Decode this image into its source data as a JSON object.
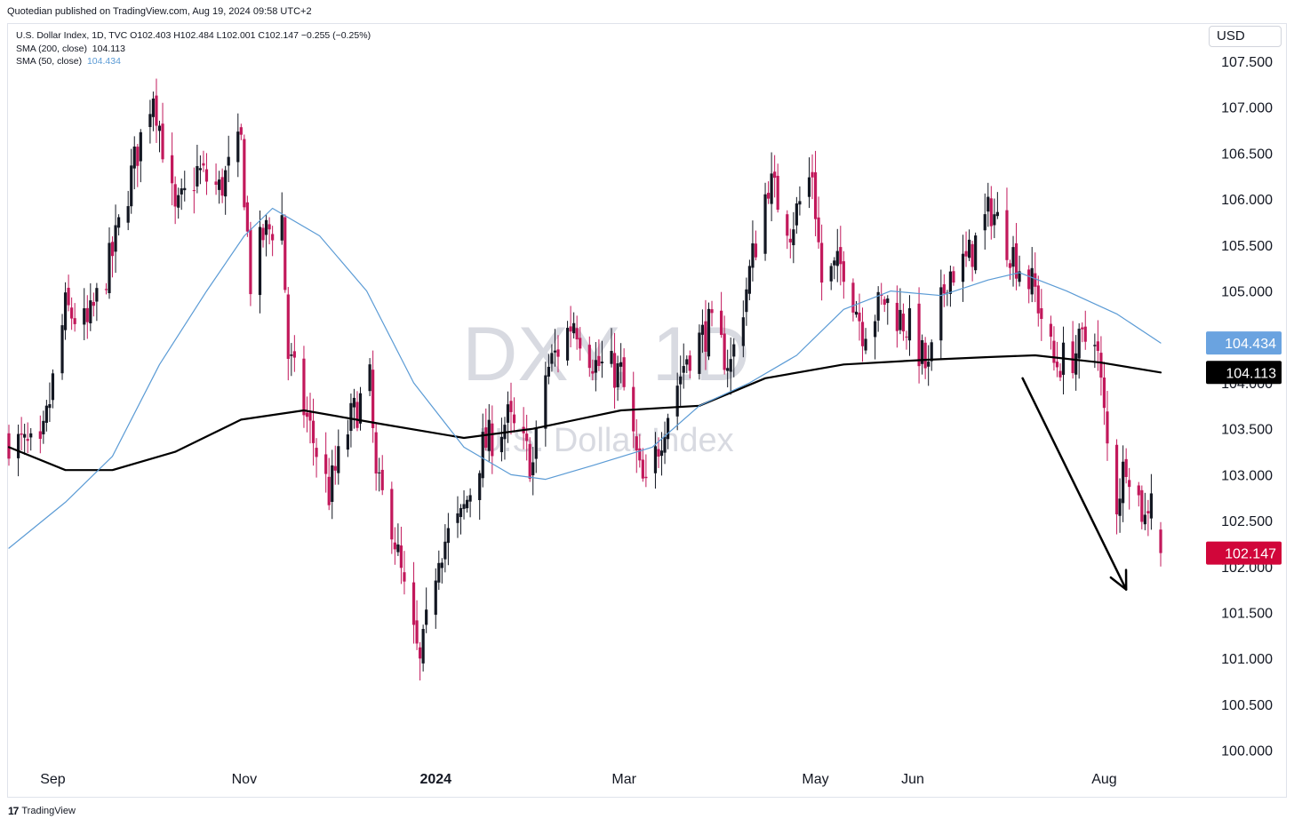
{
  "publisher_line": "Quotedian published on TradingView.com, Aug 19, 2024 09:58 UTC+2",
  "legend": {
    "symbol_line": "U.S. Dollar Index, 1D, TVC  O102.403  H102.484  L102.001  C102.147  −0.255 (−0.25%)",
    "sma200_label": "SMA (200, close)",
    "sma200_value": "104.113",
    "sma50_label": "SMA (50, close)",
    "sma50_value": "104.434"
  },
  "currency": "USD",
  "watermark": {
    "main": "DXY, 1D",
    "sub": "U.S. Dollar Index"
  },
  "footer": {
    "logo": "17",
    "brand": "TradingView"
  },
  "colors": {
    "up": "#131722",
    "down": "#c2185b",
    "sma50": "#5b9bd5",
    "sma200": "#000000",
    "last_price_tag": "#d1063a",
    "sma50_tag": "#6aa3e0",
    "sma200_tag": "#000000"
  },
  "chart_data": {
    "type": "candlestick",
    "timeframe": "1D",
    "symbol": "DXY",
    "ylim": [
      99.9,
      107.8
    ],
    "yticks": [
      "107.500",
      "107.000",
      "106.500",
      "106.000",
      "105.500",
      "105.000",
      "104.500",
      "104.000",
      "103.500",
      "103.000",
      "102.500",
      "102.000",
      "101.500",
      "101.000",
      "100.500",
      "100.000"
    ],
    "xticks": [
      {
        "label": "Sep",
        "date": "2023-09-01"
      },
      {
        "label": "Nov",
        "date": "2023-11-01"
      },
      {
        "label": "2024",
        "date": "2024-01-01"
      },
      {
        "label": "Mar",
        "date": "2024-03-01"
      },
      {
        "label": "May",
        "date": "2024-05-01"
      },
      {
        "label": "Jun",
        "date": "2024-06-01"
      },
      {
        "label": "Aug",
        "date": "2024-08-01"
      }
    ],
    "date_range": [
      "2023-08-18",
      "2024-08-19"
    ],
    "close_path": [
      [
        "2023-08-18",
        103.4
      ],
      [
        "2023-08-28",
        103.2
      ],
      [
        "2023-09-05",
        104.8
      ],
      [
        "2023-09-12",
        104.6
      ],
      [
        "2023-09-20",
        105.4
      ],
      [
        "2023-09-27",
        106.4
      ],
      [
        "2023-10-03",
        107.2
      ],
      [
        "2023-10-10",
        105.8
      ],
      [
        "2023-10-17",
        106.3
      ],
      [
        "2023-10-24",
        106.1
      ],
      [
        "2023-10-31",
        106.6
      ],
      [
        "2023-11-03",
        105.1
      ],
      [
        "2023-11-07",
        105.6
      ],
      [
        "2023-11-13",
        105.8
      ],
      [
        "2023-11-15",
        104.3
      ],
      [
        "2023-11-21",
        103.6
      ],
      [
        "2023-11-28",
        102.8
      ],
      [
        "2023-12-05",
        103.6
      ],
      [
        "2023-12-11",
        104.0
      ],
      [
        "2023-12-13",
        102.9
      ],
      [
        "2023-12-18",
        102.5
      ],
      [
        "2023-12-22",
        101.7
      ],
      [
        "2023-12-27",
        100.9
      ],
      [
        "2024-01-02",
        102.2
      ],
      [
        "2024-01-09",
        102.5
      ],
      [
        "2024-01-16",
        103.3
      ],
      [
        "2024-01-24",
        103.6
      ],
      [
        "2024-02-01",
        103.1
      ],
      [
        "2024-02-05",
        104.1
      ],
      [
        "2024-02-14",
        104.7
      ],
      [
        "2024-02-21",
        104.2
      ],
      [
        "2024-02-29",
        104.1
      ],
      [
        "2024-03-06",
        103.0
      ],
      [
        "2024-03-08",
        102.8
      ],
      [
        "2024-03-14",
        103.6
      ],
      [
        "2024-03-21",
        104.3
      ],
      [
        "2024-03-28",
        104.6
      ],
      [
        "2024-04-04",
        104.2
      ],
      [
        "2024-04-10",
        105.2
      ],
      [
        "2024-04-16",
        106.2
      ],
      [
        "2024-04-23",
        105.7
      ],
      [
        "2024-04-30",
        106.3
      ],
      [
        "2024-05-03",
        105.1
      ],
      [
        "2024-05-10",
        105.3
      ],
      [
        "2024-05-16",
        104.6
      ],
      [
        "2024-05-23",
        104.9
      ],
      [
        "2024-05-31",
        104.6
      ],
      [
        "2024-06-06",
        104.1
      ],
      [
        "2024-06-12",
        105.2
      ],
      [
        "2024-06-18",
        105.3
      ],
      [
        "2024-06-26",
        105.9
      ],
      [
        "2024-07-03",
        105.4
      ],
      [
        "2024-07-10",
        105.0
      ],
      [
        "2024-07-16",
        104.2
      ],
      [
        "2024-07-22",
        104.3
      ],
      [
        "2024-07-29",
        104.6
      ],
      [
        "2024-08-02",
        103.3
      ],
      [
        "2024-08-05",
        102.7
      ],
      [
        "2024-08-08",
        103.2
      ],
      [
        "2024-08-14",
        102.5
      ],
      [
        "2024-08-16",
        102.9
      ],
      [
        "2024-08-19",
        102.147
      ]
    ],
    "series": [
      {
        "name": "SMA (200, close)",
        "type": "line",
        "points": [
          [
            "2023-08-18",
            103.3
          ],
          [
            "2023-09-05",
            103.05
          ],
          [
            "2023-09-20",
            103.05
          ],
          [
            "2023-10-10",
            103.25
          ],
          [
            "2023-10-31",
            103.6
          ],
          [
            "2023-11-20",
            103.7
          ],
          [
            "2023-12-15",
            103.55
          ],
          [
            "2024-01-10",
            103.4
          ],
          [
            "2024-02-01",
            103.5
          ],
          [
            "2024-02-29",
            103.7
          ],
          [
            "2024-03-25",
            103.75
          ],
          [
            "2024-04-15",
            104.05
          ],
          [
            "2024-05-10",
            104.2
          ],
          [
            "2024-06-05",
            104.25
          ],
          [
            "2024-06-25",
            104.28
          ],
          [
            "2024-07-10",
            104.3
          ],
          [
            "2024-07-31",
            104.22
          ],
          [
            "2024-08-19",
            104.113
          ]
        ]
      },
      {
        "name": "SMA (50, close)",
        "type": "line",
        "points": [
          [
            "2023-08-18",
            102.2
          ],
          [
            "2023-09-05",
            102.7
          ],
          [
            "2023-09-20",
            103.2
          ],
          [
            "2023-10-05",
            104.2
          ],
          [
            "2023-10-20",
            105.0
          ],
          [
            "2023-11-01",
            105.6
          ],
          [
            "2023-11-10",
            105.9
          ],
          [
            "2023-11-25",
            105.6
          ],
          [
            "2023-12-10",
            105.0
          ],
          [
            "2023-12-25",
            104.0
          ],
          [
            "2024-01-10",
            103.3
          ],
          [
            "2024-01-25",
            103.0
          ],
          [
            "2024-02-05",
            102.95
          ],
          [
            "2024-02-20",
            103.1
          ],
          [
            "2024-03-10",
            103.3
          ],
          [
            "2024-03-25",
            103.75
          ],
          [
            "2024-04-10",
            104.0
          ],
          [
            "2024-04-25",
            104.3
          ],
          [
            "2024-05-10",
            104.8
          ],
          [
            "2024-05-25",
            105.0
          ],
          [
            "2024-06-10",
            104.95
          ],
          [
            "2024-06-25",
            105.12
          ],
          [
            "2024-07-05",
            105.2
          ],
          [
            "2024-07-20",
            105.0
          ],
          [
            "2024-08-05",
            104.75
          ],
          [
            "2024-08-19",
            104.434
          ]
        ]
      }
    ],
    "annotation_arrow": {
      "from": [
        "2024-07-06",
        104.05
      ],
      "to": [
        "2024-08-08",
        101.75
      ]
    },
    "price_tags": [
      {
        "name": "SMA (50, close)",
        "value": "104.434"
      },
      {
        "name": "SMA (200, close)",
        "value": "104.113"
      },
      {
        "name": "last",
        "value": "102.147"
      }
    ]
  }
}
